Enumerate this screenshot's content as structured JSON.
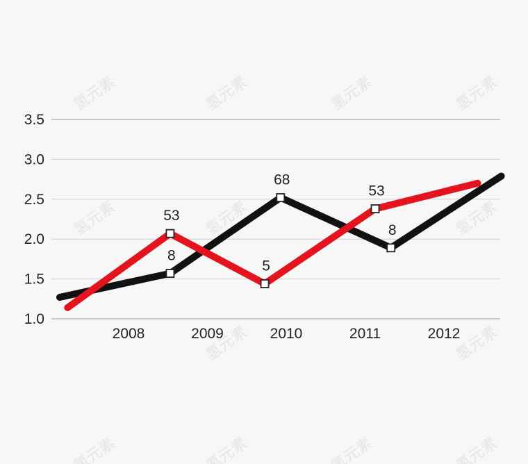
{
  "chart_data": {
    "type": "line",
    "title": "",
    "xlabel": "",
    "ylabel": "",
    "ylim": [
      1.0,
      3.5
    ],
    "y_ticks": [
      "1.0",
      "1.5",
      "2.0",
      "2.5",
      "3.0",
      "3.5"
    ],
    "categories": [
      "2008",
      "2009",
      "2010",
      "2011",
      "2012"
    ],
    "grid": true,
    "series": [
      {
        "color": "#111111",
        "points": [
          {
            "x": 0.0,
            "y": 1.27,
            "label": ""
          },
          {
            "x": 1.4,
            "y": 1.57,
            "label": "8"
          },
          {
            "x": 2.8,
            "y": 2.52,
            "label": "68"
          },
          {
            "x": 4.2,
            "y": 1.89,
            "label": "8"
          },
          {
            "x": 5.6,
            "y": 2.79,
            "label": ""
          }
        ]
      },
      {
        "color": "#e3141e",
        "points": [
          {
            "x": 0.1,
            "y": 1.14,
            "label": ""
          },
          {
            "x": 1.4,
            "y": 2.07,
            "label": "53"
          },
          {
            "x": 2.6,
            "y": 1.44,
            "label": "5"
          },
          {
            "x": 4.0,
            "y": 2.38,
            "label": "53"
          },
          {
            "x": 5.3,
            "y": 2.7,
            "label": ""
          }
        ]
      }
    ]
  },
  "watermark_text": "氢元素"
}
